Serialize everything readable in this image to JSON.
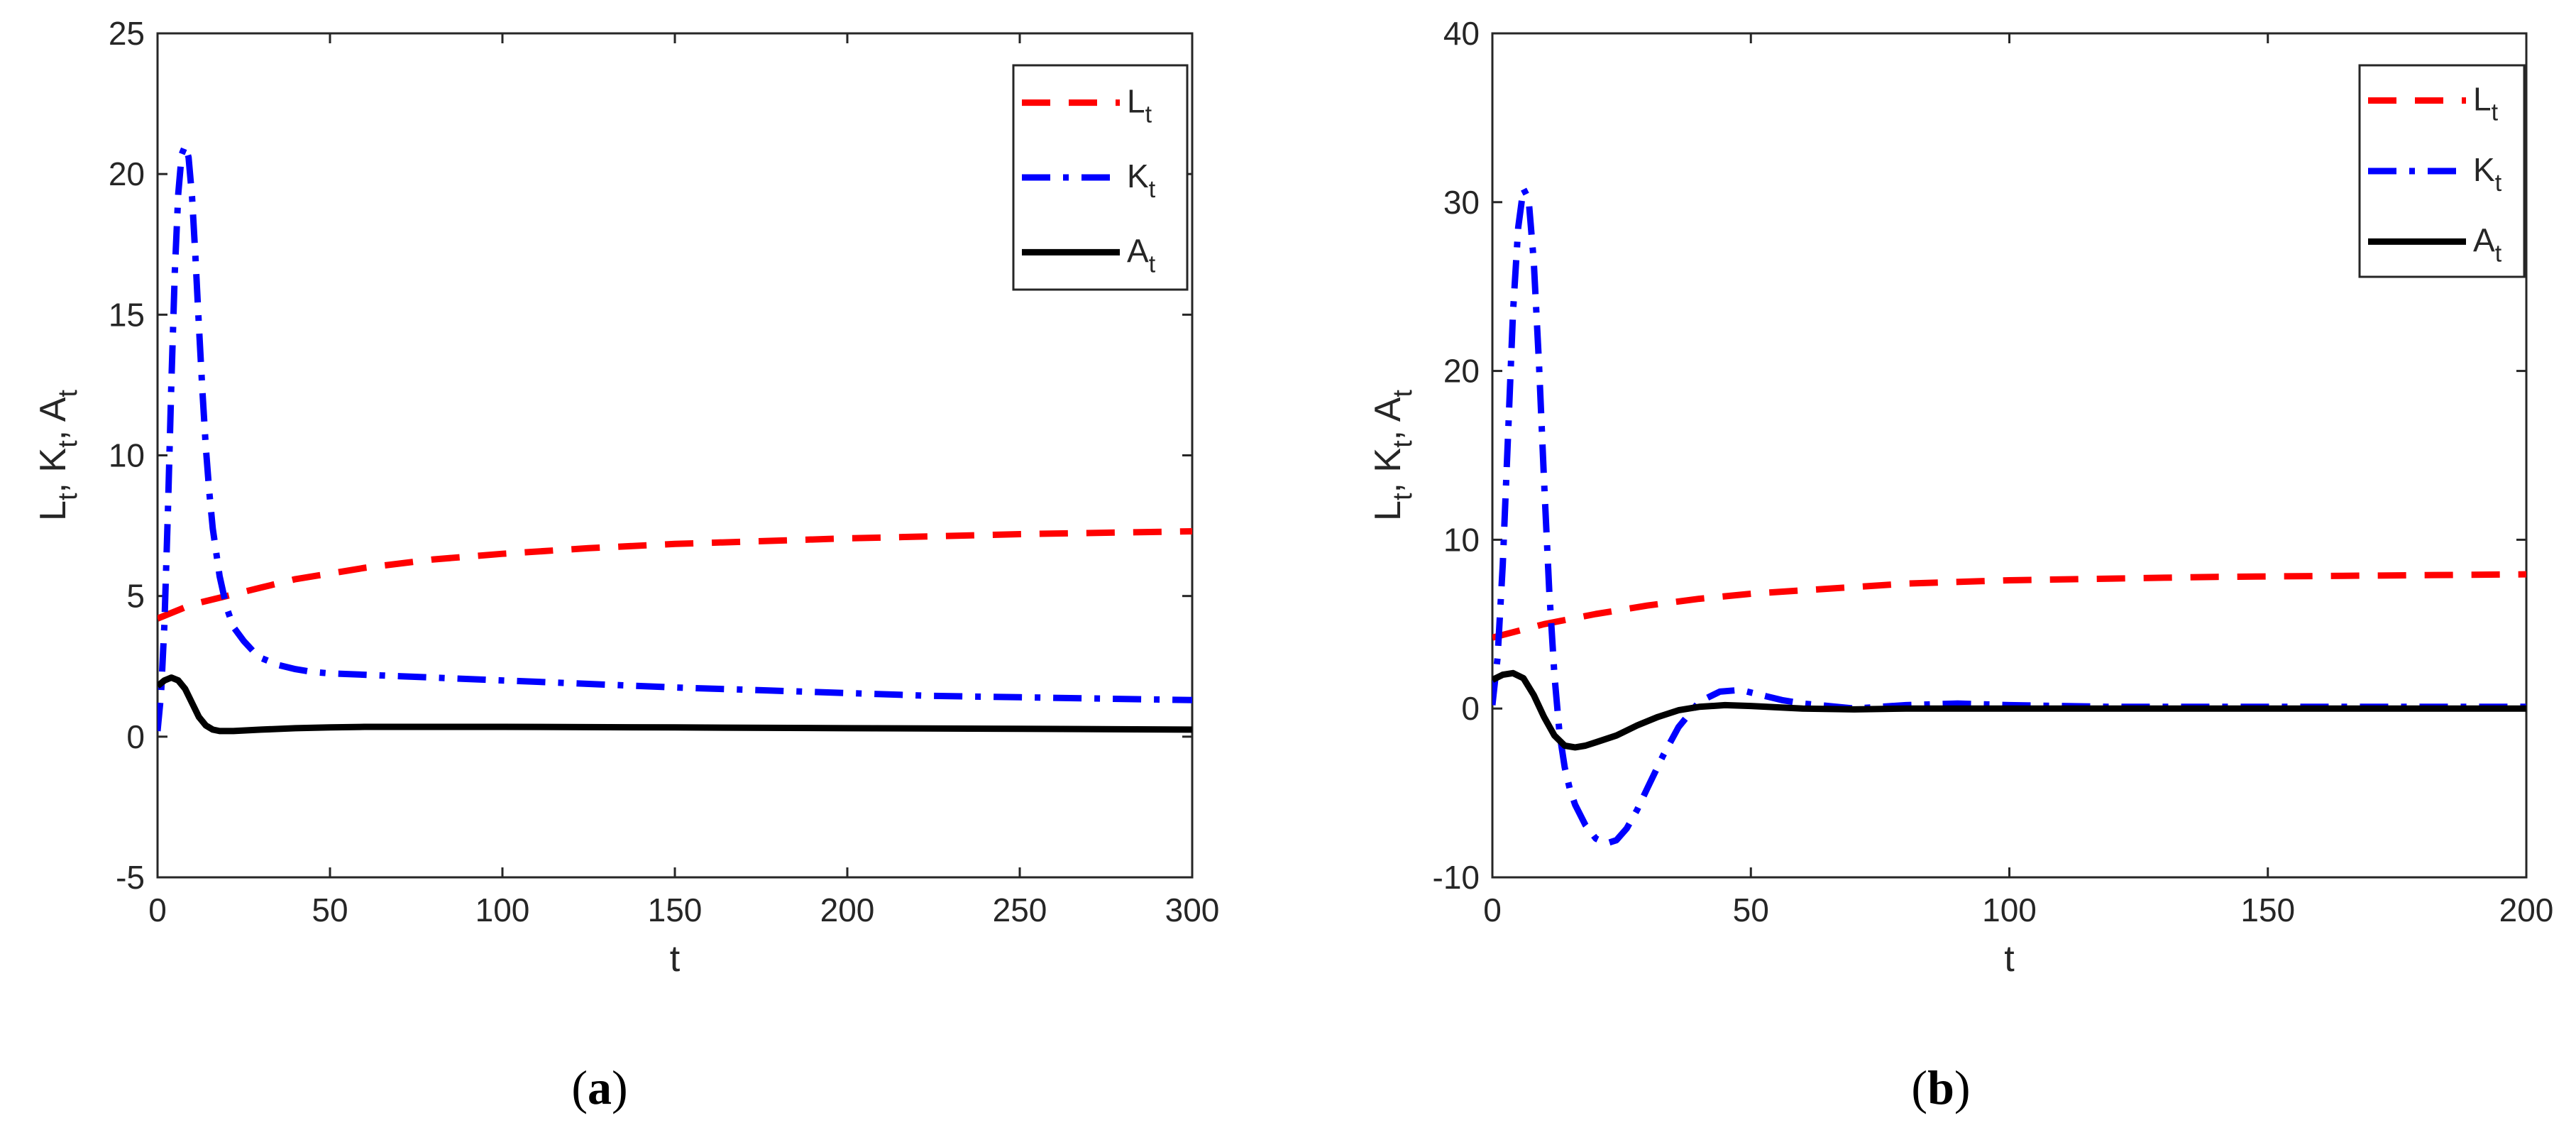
{
  "chart_data": [
    {
      "type": "line",
      "panel": "a",
      "caption": {
        "open": "(",
        "letter": "a",
        "close": ")"
      },
      "xlabel": "t",
      "ylabel": {
        "parts": [
          {
            "base": "L",
            "sub": "t",
            "sep": ", "
          },
          {
            "base": "K",
            "sub": "t",
            "sep": ", "
          },
          {
            "base": "A",
            "sub": "t",
            "sep": ""
          }
        ]
      },
      "xlim": [
        0,
        300
      ],
      "ylim": [
        -5,
        25
      ],
      "xticks": [
        0,
        50,
        100,
        150,
        200,
        250,
        300
      ],
      "yticks": [
        -5,
        0,
        5,
        10,
        15,
        20,
        25
      ],
      "xtick_labels": [
        "0",
        "50",
        "100",
        "150",
        "200",
        "250",
        "300"
      ],
      "ytick_labels": [
        "-5",
        "0",
        "5",
        "10",
        "15",
        "20",
        "25"
      ],
      "grid": false,
      "legend_position": "top-right",
      "series": [
        {
          "name": "L",
          "sub": "t",
          "color": "#ff0000",
          "style": "dashed",
          "x": [
            0,
            10,
            20,
            30,
            40,
            50,
            60,
            80,
            100,
            125,
            150,
            175,
            200,
            225,
            250,
            275,
            300
          ],
          "y": [
            4.2,
            4.7,
            5.0,
            5.3,
            5.6,
            5.8,
            6.0,
            6.3,
            6.5,
            6.7,
            6.85,
            6.95,
            7.05,
            7.12,
            7.2,
            7.25,
            7.3
          ]
        },
        {
          "name": "K",
          "sub": "t",
          "color": "#0000ff",
          "style": "dashdot",
          "x": [
            0,
            1,
            2,
            3,
            4,
            5,
            6,
            7,
            8,
            9,
            10,
            11,
            12,
            13,
            14,
            15,
            16,
            18,
            20,
            22,
            25,
            28,
            30,
            35,
            40,
            45,
            50,
            60,
            70,
            80,
            100,
            120,
            150,
            175,
            200,
            225,
            250,
            275,
            300
          ],
          "y": [
            0.2,
            1.5,
            4.0,
            8.0,
            12.5,
            16.5,
            19.3,
            20.7,
            21.0,
            20.6,
            19.2,
            17.0,
            14.6,
            12.3,
            10.3,
            8.7,
            7.4,
            5.7,
            4.6,
            3.9,
            3.4,
            3.0,
            2.8,
            2.55,
            2.4,
            2.3,
            2.25,
            2.2,
            2.15,
            2.1,
            2.0,
            1.9,
            1.75,
            1.65,
            1.55,
            1.45,
            1.4,
            1.35,
            1.3
          ]
        },
        {
          "name": "A",
          "sub": "t",
          "color": "#000000",
          "style": "solid",
          "x": [
            0,
            2,
            4,
            6,
            8,
            10,
            12,
            14,
            16,
            18,
            20,
            22,
            25,
            30,
            40,
            50,
            60,
            80,
            100,
            150,
            200,
            250,
            300
          ],
          "y": [
            1.8,
            2.0,
            2.1,
            2.0,
            1.7,
            1.2,
            0.7,
            0.4,
            0.25,
            0.2,
            0.2,
            0.2,
            0.22,
            0.25,
            0.3,
            0.33,
            0.35,
            0.35,
            0.35,
            0.33,
            0.3,
            0.28,
            0.25
          ]
        }
      ]
    },
    {
      "type": "line",
      "panel": "b",
      "caption": {
        "open": "(",
        "letter": "b",
        "close": ")"
      },
      "xlabel": "t",
      "ylabel": {
        "parts": [
          {
            "base": "L",
            "sub": "t",
            "sep": ", "
          },
          {
            "base": "K",
            "sub": "t",
            "sep": ", "
          },
          {
            "base": "A",
            "sub": "t",
            "sep": ""
          }
        ]
      },
      "xlim": [
        0,
        200
      ],
      "ylim": [
        -10,
        40
      ],
      "xticks": [
        0,
        50,
        100,
        150,
        200
      ],
      "yticks": [
        -10,
        0,
        10,
        20,
        30,
        40
      ],
      "xtick_labels": [
        "0",
        "50",
        "100",
        "150",
        "200"
      ],
      "ytick_labels": [
        "-10",
        "0",
        "10",
        "20",
        "30",
        "40"
      ],
      "grid": false,
      "legend_position": "top-right",
      "series": [
        {
          "name": "L",
          "sub": "t",
          "color": "#ff0000",
          "style": "dashed",
          "x": [
            0,
            10,
            20,
            30,
            40,
            50,
            60,
            70,
            80,
            100,
            120,
            140,
            160,
            180,
            200
          ],
          "y": [
            4.2,
            5.0,
            5.6,
            6.1,
            6.5,
            6.8,
            7.0,
            7.2,
            7.4,
            7.6,
            7.7,
            7.8,
            7.85,
            7.9,
            7.95
          ]
        },
        {
          "name": "K",
          "sub": "t",
          "color": "#0000ff",
          "style": "dashdot",
          "x": [
            0,
            1,
            2,
            3,
            4,
            5,
            6,
            7,
            8,
            9,
            10,
            11,
            12,
            13,
            14,
            15,
            16,
            18,
            20,
            22,
            24,
            26,
            28,
            30,
            33,
            36,
            40,
            44,
            48,
            52,
            56,
            60,
            70,
            80,
            90,
            100,
            120,
            150,
            200
          ],
          "y": [
            0.2,
            3.0,
            8.5,
            16.0,
            23.5,
            28.5,
            30.8,
            30.2,
            26.5,
            20.5,
            13.5,
            7.0,
            2.0,
            -1.5,
            -3.5,
            -4.8,
            -5.7,
            -6.9,
            -7.7,
            -8.0,
            -7.8,
            -7.1,
            -6.0,
            -4.7,
            -2.8,
            -1.1,
            0.4,
            1.0,
            1.1,
            0.8,
            0.5,
            0.3,
            0.0,
            0.2,
            0.3,
            0.2,
            0.1,
            0.1,
            0.1
          ]
        },
        {
          "name": "A",
          "sub": "t",
          "color": "#000000",
          "style": "solid",
          "x": [
            0,
            2,
            4,
            6,
            8,
            10,
            12,
            14,
            16,
            18,
            20,
            24,
            28,
            32,
            36,
            40,
            45,
            50,
            60,
            70,
            80,
            100,
            150,
            200
          ],
          "y": [
            1.7,
            2.0,
            2.1,
            1.8,
            0.8,
            -0.5,
            -1.6,
            -2.2,
            -2.3,
            -2.2,
            -2.0,
            -1.6,
            -1.0,
            -0.5,
            -0.1,
            0.1,
            0.2,
            0.15,
            0.0,
            -0.05,
            0.0,
            0.0,
            0.0,
            0.0
          ]
        }
      ]
    }
  ]
}
